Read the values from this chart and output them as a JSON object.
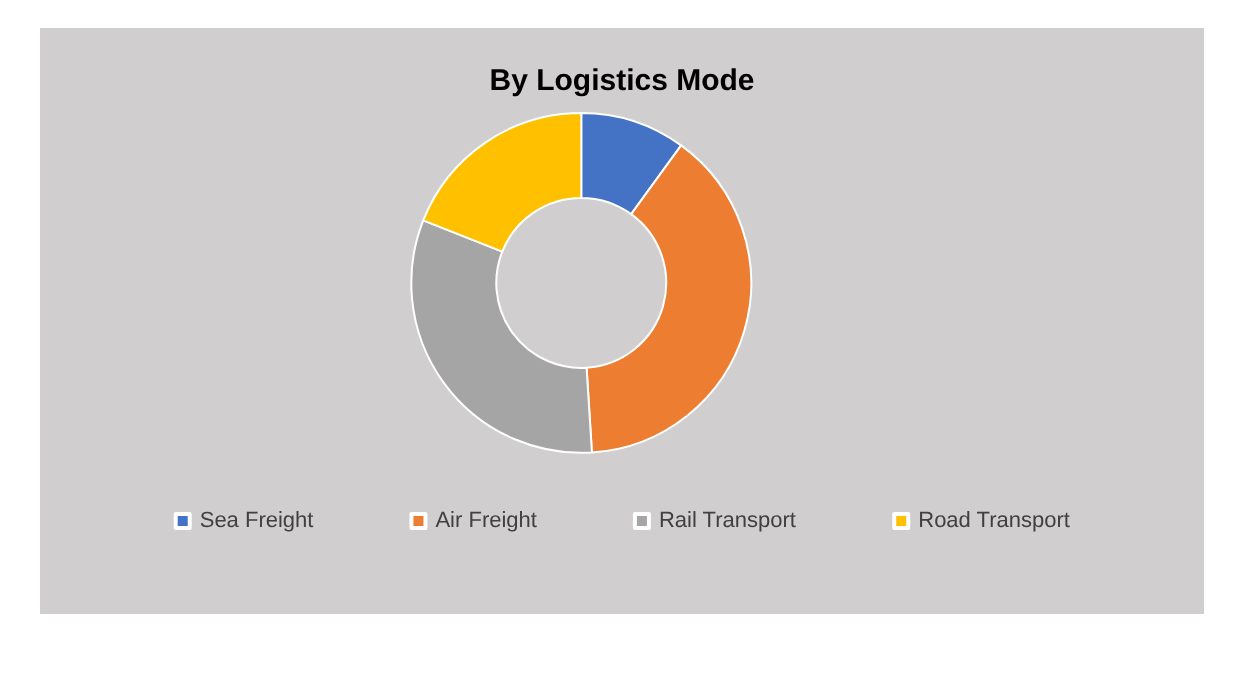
{
  "chart_data": {
    "type": "donut",
    "title": "By Logistics Mode",
    "categories": [
      "Sea Freight",
      "Air Freight",
      "Rail Transport",
      "Road Transport"
    ],
    "values": [
      10,
      39,
      32,
      19
    ],
    "colors": [
      "#4472c4",
      "#ed7d31",
      "#a5a5a5",
      "#ffc000"
    ],
    "legend": "bottom"
  }
}
